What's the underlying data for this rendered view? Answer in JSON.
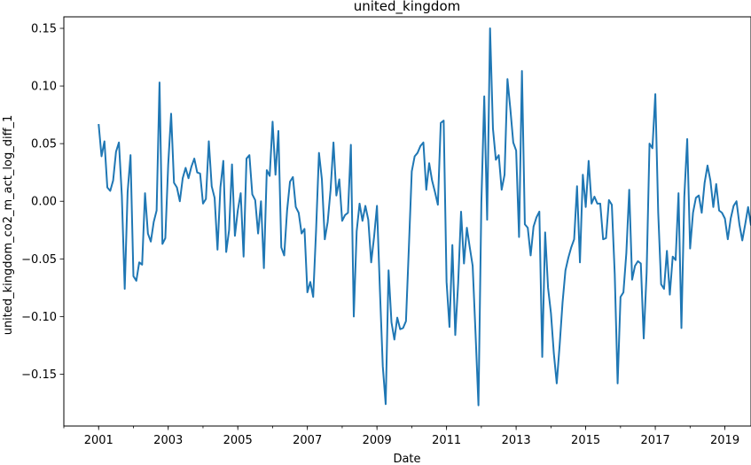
{
  "chart_data": {
    "type": "line",
    "title": "united_kingdom",
    "xlabel": "Date",
    "ylabel": "united_kingdom_co2_m_act_log_diff_1",
    "xlim": [
      "2000-01-01",
      "2019-10-01"
    ],
    "ylim": [
      -0.195,
      0.16
    ],
    "x_ticks": [
      {
        "date": "2001-01-01",
        "label": "2001"
      },
      {
        "date": "2003-01-01",
        "label": "2003"
      },
      {
        "date": "2005-01-01",
        "label": "2005"
      },
      {
        "date": "2007-01-01",
        "label": "2007"
      },
      {
        "date": "2009-01-01",
        "label": "2009"
      },
      {
        "date": "2011-01-01",
        "label": "2011"
      },
      {
        "date": "2013-01-01",
        "label": "2013"
      },
      {
        "date": "2015-01-01",
        "label": "2015"
      },
      {
        "date": "2017-01-01",
        "label": "2017"
      },
      {
        "date": "2019-01-01",
        "label": "2019"
      }
    ],
    "y_ticks": [
      {
        "value": 0.15,
        "label": "0.15"
      },
      {
        "value": 0.1,
        "label": "0.10"
      },
      {
        "value": 0.05,
        "label": "0.05"
      },
      {
        "value": 0.0,
        "label": "0.00"
      },
      {
        "value": -0.05,
        "label": "−0.05"
      },
      {
        "value": -0.1,
        "label": "−0.10"
      },
      {
        "value": -0.15,
        "label": "−0.15"
      }
    ],
    "grid": false,
    "series": [
      {
        "color": "#1f77b4",
        "start": "2001-01",
        "values": [
          0.067,
          0.039,
          0.052,
          0.012,
          0.009,
          0.018,
          0.043,
          0.051,
          0.005,
          -0.076,
          0.008,
          0.04,
          -0.065,
          -0.069,
          -0.053,
          -0.055,
          0.007,
          -0.028,
          -0.035,
          -0.018,
          -0.008,
          0.103,
          -0.037,
          -0.032,
          0.032,
          0.076,
          0.016,
          0.012,
          0.0,
          0.02,
          0.029,
          0.02,
          0.03,
          0.037,
          0.025,
          0.024,
          -0.002,
          0.002,
          0.052,
          0.013,
          0.003,
          -0.042,
          0.012,
          0.035,
          -0.044,
          -0.025,
          0.032,
          -0.03,
          -0.008,
          0.007,
          -0.048,
          0.037,
          0.04,
          0.006,
          0.001,
          -0.028,
          0.0,
          -0.058,
          0.027,
          0.022,
          0.069,
          0.023,
          0.061,
          -0.04,
          -0.047,
          -0.008,
          0.017,
          0.021,
          -0.005,
          -0.01,
          -0.028,
          -0.024,
          -0.079,
          -0.07,
          -0.083,
          -0.025,
          0.042,
          0.019,
          -0.033,
          -0.018,
          0.01,
          0.051,
          0.005,
          0.019,
          -0.017,
          -0.012,
          -0.01,
          0.049,
          -0.1,
          -0.026,
          -0.002,
          -0.017,
          -0.004,
          -0.016,
          -0.053,
          -0.031,
          -0.004,
          -0.076,
          -0.143,
          -0.176,
          -0.06,
          -0.105,
          -0.12,
          -0.101,
          -0.111,
          -0.11,
          -0.104,
          -0.04,
          0.026,
          0.039,
          0.042,
          0.048,
          0.051,
          0.01,
          0.033,
          0.018,
          0.008,
          -0.003,
          0.068,
          0.07,
          -0.07,
          -0.109,
          -0.038,
          -0.116,
          -0.071,
          -0.009,
          -0.054,
          -0.023,
          -0.04,
          -0.056,
          -0.115,
          -0.177,
          -0.001,
          0.091,
          -0.016,
          0.15,
          0.063,
          0.036,
          0.04,
          0.01,
          0.023,
          0.106,
          0.08,
          0.051,
          0.044,
          -0.031,
          0.113,
          -0.02,
          -0.023,
          -0.047,
          -0.022,
          -0.014,
          -0.009,
          -0.135,
          -0.027,
          -0.075,
          -0.097,
          -0.132,
          -0.158,
          -0.125,
          -0.088,
          -0.06,
          -0.049,
          -0.04,
          -0.033,
          0.013,
          -0.053,
          0.023,
          -0.005,
          0.035,
          -0.002,
          0.004,
          -0.002,
          -0.002,
          -0.033,
          -0.032,
          0.001,
          -0.003,
          -0.063,
          -0.158,
          -0.083,
          -0.079,
          -0.045,
          0.01,
          -0.068,
          -0.056,
          -0.052,
          -0.054,
          -0.119,
          -0.062,
          0.05,
          0.046,
          0.093,
          -0.01,
          -0.072,
          -0.076,
          -0.043,
          -0.081,
          -0.048,
          -0.051,
          0.007,
          -0.11,
          0.004,
          0.054,
          -0.041,
          -0.01,
          0.003,
          0.005,
          -0.01,
          0.016,
          0.031,
          0.018,
          -0.005,
          0.015,
          -0.008,
          -0.01,
          -0.015,
          -0.033,
          -0.015,
          -0.004,
          0.0,
          -0.02,
          -0.034,
          -0.02,
          -0.005,
          -0.021
        ]
      }
    ]
  }
}
